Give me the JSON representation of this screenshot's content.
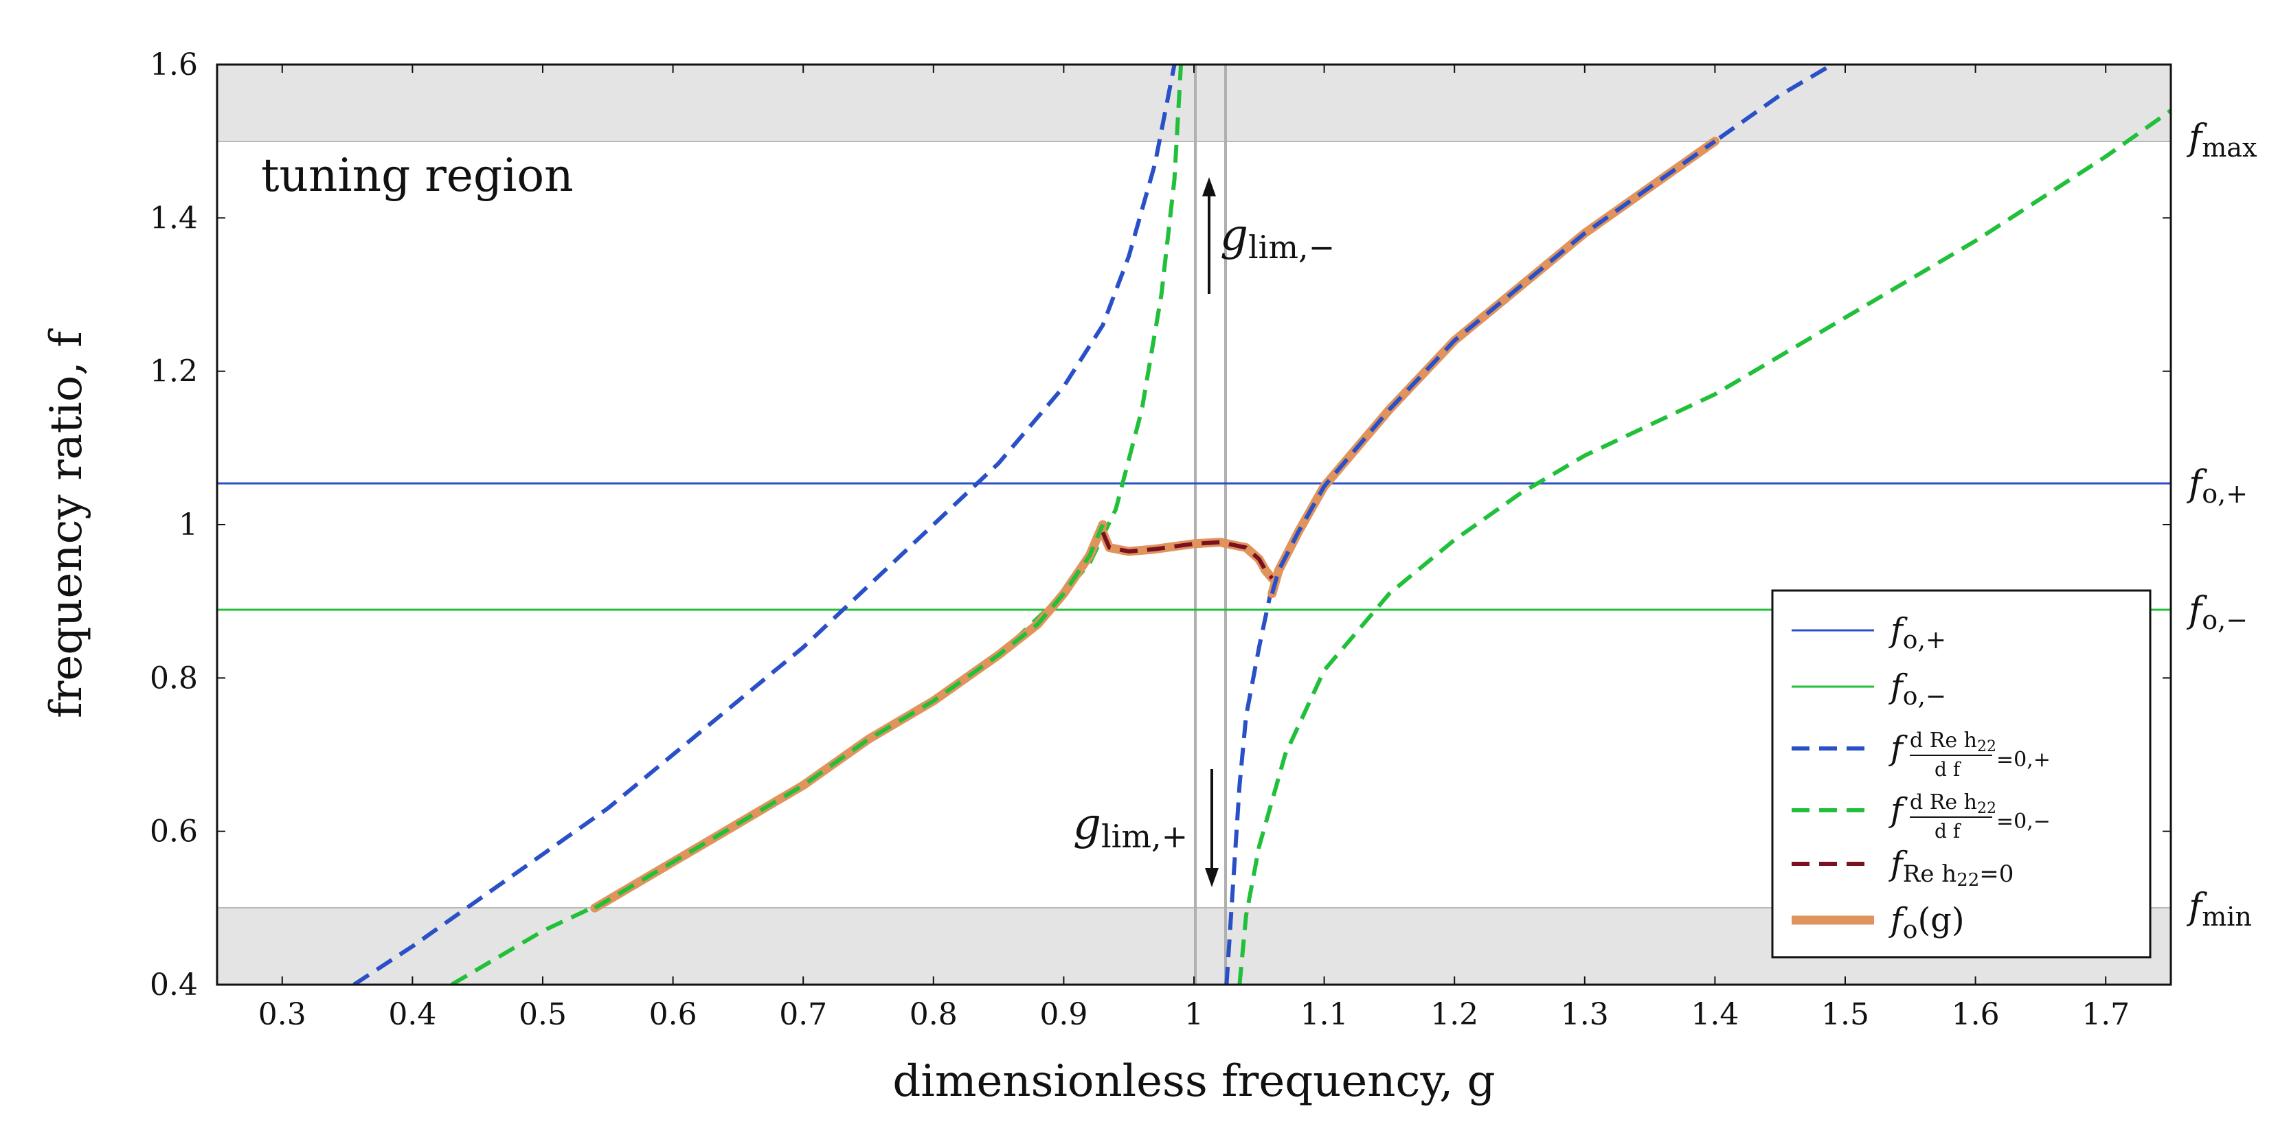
{
  "chart_data": {
    "type": "line",
    "xlabel": "dimensionless frequency, g",
    "ylabel": "frequency ratio, f",
    "xlim": [
      0.25,
      1.75
    ],
    "ylim": [
      0.4,
      1.6
    ],
    "x_ticks": [
      "0.3",
      "0.4",
      "0.5",
      "0.6",
      "0.7",
      "0.8",
      "0.9",
      "1",
      "1.1",
      "1.2",
      "1.3",
      "1.4",
      "1.5",
      "1.6",
      "1.7"
    ],
    "y_ticks": [
      "0.4",
      "0.6",
      "0.8",
      "1",
      "1.2",
      "1.4",
      "1.6"
    ],
    "annotations": {
      "tuning_region": "tuning region",
      "g_lim_minus": "g",
      "g_lim_minus_sub": "lim,−",
      "g_lim_plus": "g",
      "g_lim_plus_sub": "lim,+"
    },
    "right_labels": {
      "f_max": "f",
      "f_max_sub": "max",
      "f_o_plus": "f",
      "f_o_plus_sub": "o,+",
      "f_o_minus": "f",
      "f_o_minus_sub": "o,−",
      "f_min": "f",
      "f_min_sub": "min"
    },
    "shaded_bands": [
      {
        "ymin": 1.5,
        "ymax": 1.6,
        "color": "#e4e4e4"
      },
      {
        "ymin": 0.4,
        "ymax": 0.5,
        "color": "#e4e4e4"
      }
    ],
    "reference_lines": {
      "horizontal": [
        {
          "y": 1.054,
          "color": "#2a50c8"
        },
        {
          "y": 0.889,
          "color": "#22c03a"
        }
      ],
      "vertical": [
        {
          "x": 1.0,
          "color": "#b0b0b0"
        },
        {
          "x": 1.024,
          "color": "#b0b0b0"
        }
      ]
    },
    "legend": {
      "position": "lower-right",
      "entries": [
        {
          "label": "f",
          "sub": "o,+",
          "style": "solid-blue"
        },
        {
          "label": "f",
          "sub": "o,−",
          "style": "solid-green"
        },
        {
          "label": "f",
          "frac_num": "d Re h",
          "frac_num_sub": "22",
          "frac_den": "d f",
          "sub_tail": "=0,+",
          "style": "dashed-blue"
        },
        {
          "label": "f",
          "frac_num": "d Re h",
          "frac_num_sub": "22",
          "frac_den": "d f",
          "sub_tail": "=0,−",
          "style": "dashed-green"
        },
        {
          "label": "f",
          "sub": "Re h",
          "sub2": "22",
          "sub_tail": "=0",
          "style": "dashed-darkred"
        },
        {
          "label": "f",
          "sub": "o",
          "paren": "(g)",
          "style": "thick-orange"
        }
      ]
    },
    "series": [
      {
        "key": "dblue_left",
        "color": "#2a50c8",
        "dash": true,
        "width": 6,
        "x": [
          0.355,
          0.4,
          0.45,
          0.5,
          0.55,
          0.6,
          0.65,
          0.7,
          0.75,
          0.8,
          0.85,
          0.9,
          0.93,
          0.95,
          0.97,
          0.985
        ],
        "y": [
          0.4,
          0.45,
          0.51,
          0.57,
          0.63,
          0.7,
          0.77,
          0.84,
          0.92,
          1.0,
          1.08,
          1.18,
          1.26,
          1.35,
          1.47,
          1.6
        ]
      },
      {
        "key": "dblue_right",
        "color": "#2a50c8",
        "dash": true,
        "width": 6,
        "x": [
          1.025,
          1.03,
          1.035,
          1.04,
          1.05,
          1.06,
          1.08,
          1.1,
          1.15,
          1.2,
          1.25,
          1.3,
          1.35,
          1.4,
          1.45,
          1.49
        ],
        "y": [
          0.4,
          0.53,
          0.66,
          0.75,
          0.84,
          0.92,
          0.99,
          1.05,
          1.15,
          1.24,
          1.31,
          1.38,
          1.44,
          1.5,
          1.56,
          1.6
        ]
      },
      {
        "key": "dgreen_left",
        "color": "#22c03a",
        "dash": true,
        "width": 6,
        "x": [
          0.43,
          0.5,
          0.55,
          0.6,
          0.65,
          0.7,
          0.75,
          0.8,
          0.85,
          0.9,
          0.92,
          0.94,
          0.96,
          0.975,
          0.985,
          0.99
        ],
        "y": [
          0.4,
          0.47,
          0.51,
          0.56,
          0.61,
          0.66,
          0.72,
          0.77,
          0.83,
          0.91,
          0.95,
          1.02,
          1.15,
          1.3,
          1.45,
          1.6
        ]
      },
      {
        "key": "dgreen_right",
        "color": "#22c03a",
        "dash": true,
        "width": 6,
        "x": [
          1.035,
          1.04,
          1.05,
          1.07,
          1.1,
          1.15,
          1.2,
          1.25,
          1.3,
          1.4,
          1.5,
          1.6,
          1.7,
          1.75
        ],
        "y": [
          0.4,
          0.49,
          0.58,
          0.7,
          0.81,
          0.91,
          0.98,
          1.04,
          1.09,
          1.17,
          1.27,
          1.37,
          1.48,
          1.54
        ]
      },
      {
        "key": "orange_left",
        "color": "#e0935c",
        "dash": false,
        "width": 13,
        "x": [
          0.54,
          0.6,
          0.65,
          0.7,
          0.75,
          0.8,
          0.85,
          0.88,
          0.9,
          0.92,
          0.93
        ],
        "y": [
          0.5,
          0.56,
          0.61,
          0.66,
          0.72,
          0.77,
          0.83,
          0.87,
          0.91,
          0.96,
          1.0
        ]
      },
      {
        "key": "orange_mid",
        "color": "#e0935c",
        "dash": false,
        "width": 13,
        "x": [
          0.93,
          0.935,
          0.95,
          0.97,
          1.0,
          1.02,
          1.04,
          1.05,
          1.055,
          1.06
        ],
        "y": [
          0.99,
          0.97,
          0.965,
          0.968,
          0.975,
          0.977,
          0.97,
          0.955,
          0.94,
          0.93
        ]
      },
      {
        "key": "orange_right",
        "color": "#e0935c",
        "dash": false,
        "width": 13,
        "x": [
          1.06,
          1.065,
          1.08,
          1.1,
          1.15,
          1.2,
          1.25,
          1.3,
          1.35,
          1.4
        ],
        "y": [
          0.91,
          0.94,
          0.99,
          1.05,
          1.15,
          1.24,
          1.31,
          1.38,
          1.44,
          1.5
        ]
      },
      {
        "key": "dred_mid",
        "color": "#7a1020",
        "dash": true,
        "width": 6,
        "x": [
          0.93,
          0.935,
          0.95,
          0.97,
          1.0,
          1.02,
          1.04,
          1.05,
          1.055,
          1.06
        ],
        "y": [
          0.99,
          0.97,
          0.965,
          0.968,
          0.975,
          0.977,
          0.97,
          0.955,
          0.94,
          0.93
        ]
      },
      {
        "key": "dblue_overlay",
        "color": "#2a50c8",
        "dash": true,
        "width": 6,
        "x": [
          1.06,
          1.065,
          1.08,
          1.1,
          1.15,
          1.2,
          1.25,
          1.3,
          1.35,
          1.4
        ],
        "y": [
          0.91,
          0.94,
          0.99,
          1.05,
          1.15,
          1.24,
          1.31,
          1.38,
          1.44,
          1.5
        ]
      },
      {
        "key": "dgreen_overlay",
        "color": "#22c03a",
        "dash": true,
        "width": 6,
        "x": [
          0.54,
          0.6,
          0.65,
          0.7,
          0.75,
          0.8,
          0.85,
          0.88,
          0.9,
          0.92,
          0.93
        ],
        "y": [
          0.5,
          0.56,
          0.61,
          0.66,
          0.72,
          0.77,
          0.83,
          0.87,
          0.91,
          0.96,
          1.0
        ]
      }
    ]
  }
}
